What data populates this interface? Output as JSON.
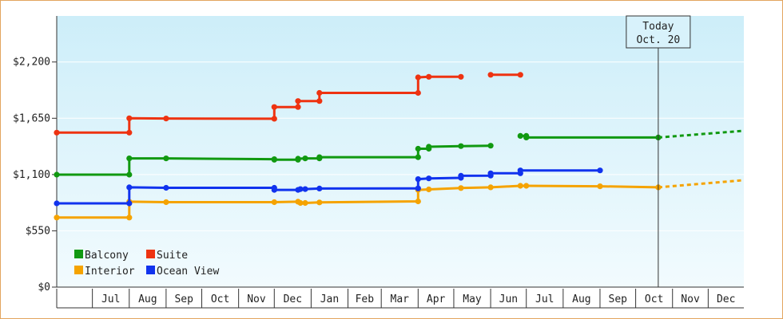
{
  "chart_data": {
    "type": "line",
    "x_axis": {
      "type": "time",
      "range": [
        "2012-06-01",
        "2013-12-31"
      ],
      "tick_labels": [
        "Jul",
        "Aug",
        "Sep",
        "Oct",
        "Nov",
        "Dec",
        "Jan",
        "Feb",
        "Mar",
        "Apr",
        "May",
        "Jun",
        "Jul",
        "Aug",
        "Sep",
        "Oct",
        "Nov",
        "Dec"
      ]
    },
    "y_axis": {
      "range": [
        0,
        2650
      ],
      "ticks": [
        0,
        550,
        1100,
        1650,
        2200
      ],
      "tick_labels": [
        "$0",
        "$550",
        "$1,100",
        "$1,650",
        "$2,200"
      ]
    },
    "today_marker": {
      "date": "2013-10-20",
      "line1": "Today",
      "line2": "Oct. 20"
    },
    "legend": {
      "placement": "bottom-left",
      "columns": 2
    },
    "series": [
      {
        "name": "Balcony",
        "color": "#119911",
        "segments": [
          [
            [
              "2012-06-01",
              1099
            ],
            [
              "2012-08-01",
              1099
            ],
            [
              "2012-08-01",
              1258
            ],
            [
              "2012-09-01",
              1258
            ],
            [
              "2012-12-01",
              1250
            ],
            [
              "2012-12-01",
              1245
            ],
            [
              "2012-12-21",
              1245
            ],
            [
              "2012-12-21",
              1255
            ],
            [
              "2012-12-27",
              1258
            ],
            [
              "2013-01-08",
              1258
            ],
            [
              "2013-01-08",
              1270
            ],
            [
              "2013-04-01",
              1270
            ],
            [
              "2013-04-01",
              1352
            ],
            [
              "2013-04-10",
              1352
            ],
            [
              "2013-04-10",
              1372
            ],
            [
              "2013-05-07",
              1378
            ],
            [
              "2013-06-01",
              1382
            ]
          ],
          [
            [
              "2013-06-26",
              1478
            ],
            [
              "2013-07-01",
              1478
            ],
            [
              "2013-07-01",
              1462
            ],
            [
              "2013-10-20",
              1462
            ]
          ]
        ],
        "projection": [
          [
            "2013-10-20",
            1462
          ],
          [
            "2013-12-31",
            1528
          ]
        ]
      },
      {
        "name": "Suite",
        "color": "#ee3311",
        "segments": [
          [
            [
              "2012-06-01",
              1510
            ],
            [
              "2012-08-01",
              1510
            ],
            [
              "2012-08-01",
              1650
            ],
            [
              "2012-09-01",
              1648
            ],
            [
              "2012-12-01",
              1645
            ],
            [
              "2012-12-01",
              1760
            ],
            [
              "2012-12-21",
              1760
            ],
            [
              "2012-12-21",
              1818
            ],
            [
              "2013-01-08",
              1818
            ],
            [
              "2013-01-08",
              1898
            ],
            [
              "2013-04-01",
              1898
            ],
            [
              "2013-04-01",
              2050
            ],
            [
              "2013-04-10",
              2055
            ],
            [
              "2013-05-07",
              2055
            ]
          ],
          [
            [
              "2013-06-01",
              2075
            ],
            [
              "2013-06-26",
              2075
            ]
          ]
        ]
      },
      {
        "name": "Interior",
        "color": "#f5a300",
        "segments": [
          [
            [
              "2012-06-01",
              680
            ],
            [
              "2012-08-01",
              680
            ],
            [
              "2012-08-01",
              835
            ],
            [
              "2012-09-01",
              830
            ],
            [
              "2012-12-01",
              830
            ],
            [
              "2012-12-21",
              835
            ],
            [
              "2012-12-23",
              822
            ],
            [
              "2012-12-27",
              822
            ],
            [
              "2013-01-08",
              828
            ],
            [
              "2013-04-01",
              838
            ],
            [
              "2013-04-01",
              950
            ],
            [
              "2013-04-10",
              955
            ],
            [
              "2013-05-07",
              968
            ],
            [
              "2013-06-01",
              975
            ],
            [
              "2013-06-26",
              990
            ],
            [
              "2013-07-01",
              990
            ],
            [
              "2013-09-01",
              985
            ],
            [
              "2013-10-20",
              975
            ]
          ]
        ],
        "projection": [
          [
            "2013-10-20",
            975
          ],
          [
            "2013-12-31",
            1045
          ]
        ]
      },
      {
        "name": "Ocean View",
        "color": "#1133ee",
        "segments": [
          [
            [
              "2012-06-01",
              818
            ],
            [
              "2012-08-01",
              818
            ],
            [
              "2012-08-01",
              975
            ],
            [
              "2012-09-01",
              970
            ],
            [
              "2012-12-01",
              970
            ],
            [
              "2012-12-01",
              950
            ],
            [
              "2012-12-21",
              950
            ],
            [
              "2012-12-23",
              958
            ],
            [
              "2012-12-27",
              958
            ],
            [
              "2013-01-08",
              963
            ],
            [
              "2013-04-01",
              965
            ],
            [
              "2013-04-01",
              1055
            ],
            [
              "2013-04-10",
              1062
            ],
            [
              "2013-05-07",
              1068
            ],
            [
              "2013-05-07",
              1088
            ],
            [
              "2013-06-01",
              1090
            ],
            [
              "2013-06-01",
              1112
            ],
            [
              "2013-06-26",
              1112
            ],
            [
              "2013-06-26",
              1140
            ],
            [
              "2013-09-01",
              1140
            ]
          ]
        ]
      }
    ]
  }
}
